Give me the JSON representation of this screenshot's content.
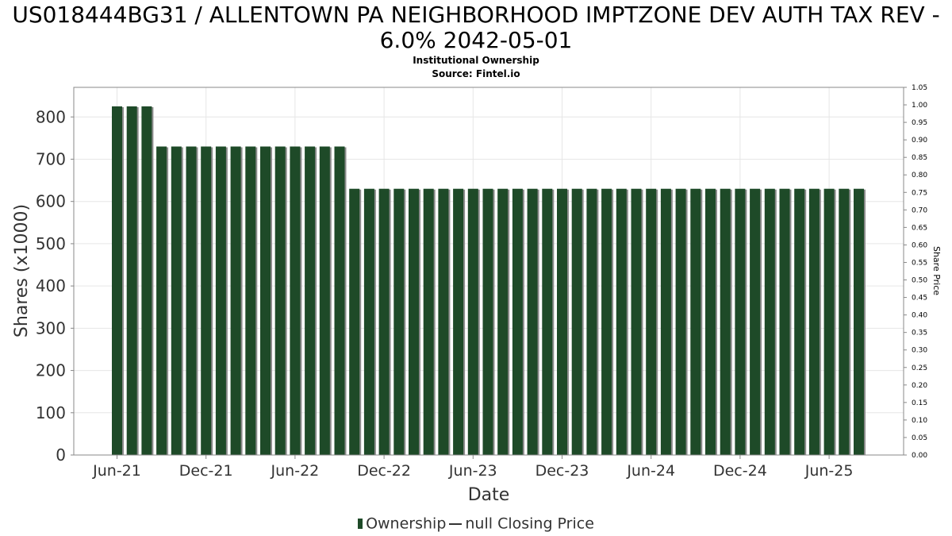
{
  "chart_data": {
    "type": "bar",
    "title_line1": "US018444BG31 / ALLENTOWN PA NEIGHBORHOOD IMPTZONE DEV AUTH TAX REV -",
    "title_line2": "6.0% 2042-05-01",
    "subtitle_line1": "Institutional Ownership",
    "subtitle_line2": "Source: Fintel.io",
    "xlabel": "Date",
    "ylabel": "Shares (x1000)",
    "y2label": "Share Price",
    "ylim": [
      0,
      870
    ],
    "y2lim": [
      0,
      1.05
    ],
    "yticks": [
      "0",
      "100",
      "200",
      "300",
      "400",
      "500",
      "600",
      "700",
      "800"
    ],
    "y2ticks": [
      "0.00",
      "0.05",
      "0.10",
      "0.15",
      "0.20",
      "0.25",
      "0.30",
      "0.35",
      "0.40",
      "0.45",
      "0.50",
      "0.55",
      "0.60",
      "0.65",
      "0.70",
      "0.75",
      "0.80",
      "0.85",
      "0.90",
      "0.95",
      "1.00",
      "1.05"
    ],
    "xticks": [
      "Jun-21",
      "Dec-21",
      "Jun-22",
      "Dec-22",
      "Jun-23",
      "Dec-23",
      "Jun-24",
      "Dec-24",
      "Jun-25"
    ],
    "grid": true,
    "legend_position": "bottom",
    "legend": [
      "Ownership",
      "null Closing Price"
    ],
    "colors": {
      "bar": "#1e4a28",
      "bar_shadow": "#8c8c8c",
      "grid": "#e6e6e6",
      "axis": "#888888"
    },
    "series": [
      {
        "name": "Ownership",
        "values": [
          825,
          825,
          825,
          730,
          730,
          730,
          730,
          730,
          730,
          730,
          730,
          730,
          730,
          730,
          730,
          730,
          630,
          630,
          630,
          630,
          630,
          630,
          630,
          630,
          630,
          630,
          630,
          630,
          630,
          630,
          630,
          630,
          630,
          630,
          630,
          630,
          630,
          630,
          630,
          630,
          630,
          630,
          630,
          630,
          630,
          630,
          630,
          630,
          630,
          630,
          630
        ]
      }
    ]
  }
}
